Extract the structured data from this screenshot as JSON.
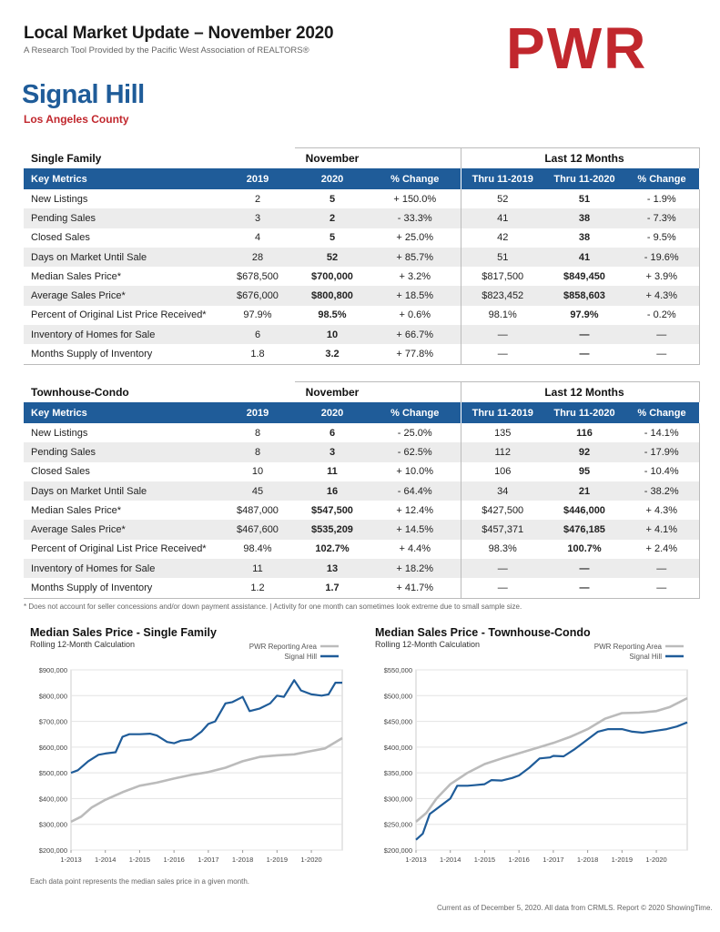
{
  "header": {
    "title": "Local Market Update – November 2020",
    "subtitle": "A Research Tool Provided by the Pacific West Association of REALTORS®",
    "logo": "PWR"
  },
  "location": {
    "city": "Signal Hill",
    "county": "Los Angeles County"
  },
  "columns": {
    "key_metrics": "Key Metrics",
    "november": "November",
    "last12": "Last 12 Months",
    "y2019": "2019",
    "y2020": "2020",
    "pct": "% Change",
    "thru2019": "Thru 11-2019",
    "thru2020": "Thru 11-2020"
  },
  "single_family": {
    "title": "Single Family",
    "rows": [
      [
        "New Listings",
        "2",
        "5",
        "+ 150.0%",
        "52",
        "51",
        "- 1.9%"
      ],
      [
        "Pending Sales",
        "3",
        "2",
        "- 33.3%",
        "41",
        "38",
        "- 7.3%"
      ],
      [
        "Closed Sales",
        "4",
        "5",
        "+ 25.0%",
        "42",
        "38",
        "- 9.5%"
      ],
      [
        "Days on Market Until Sale",
        "28",
        "52",
        "+ 85.7%",
        "51",
        "41",
        "- 19.6%"
      ],
      [
        "Median Sales Price*",
        "$678,500",
        "$700,000",
        "+ 3.2%",
        "$817,500",
        "$849,450",
        "+ 3.9%"
      ],
      [
        "Average Sales Price*",
        "$676,000",
        "$800,800",
        "+ 18.5%",
        "$823,452",
        "$858,603",
        "+ 4.3%"
      ],
      [
        "Percent of Original List Price Received*",
        "97.9%",
        "98.5%",
        "+ 0.6%",
        "98.1%",
        "97.9%",
        "- 0.2%"
      ],
      [
        "Inventory of Homes for Sale",
        "6",
        "10",
        "+ 66.7%",
        "—",
        "—",
        "—"
      ],
      [
        "Months Supply of Inventory",
        "1.8",
        "3.2",
        "+ 77.8%",
        "—",
        "—",
        "—"
      ]
    ]
  },
  "townhouse_condo": {
    "title": "Townhouse-Condo",
    "rows": [
      [
        "New Listings",
        "8",
        "6",
        "- 25.0%",
        "135",
        "116",
        "- 14.1%"
      ],
      [
        "Pending Sales",
        "8",
        "3",
        "- 62.5%",
        "112",
        "92",
        "- 17.9%"
      ],
      [
        "Closed Sales",
        "10",
        "11",
        "+ 10.0%",
        "106",
        "95",
        "- 10.4%"
      ],
      [
        "Days on Market Until Sale",
        "45",
        "16",
        "- 64.4%",
        "34",
        "21",
        "- 38.2%"
      ],
      [
        "Median Sales Price*",
        "$487,000",
        "$547,500",
        "+ 12.4%",
        "$427,500",
        "$446,000",
        "+ 4.3%"
      ],
      [
        "Average Sales Price*",
        "$467,600",
        "$535,209",
        "+ 14.5%",
        "$457,371",
        "$476,185",
        "+ 4.1%"
      ],
      [
        "Percent of Original List Price Received*",
        "98.4%",
        "102.7%",
        "+ 4.4%",
        "98.3%",
        "100.7%",
        "+ 2.4%"
      ],
      [
        "Inventory of Homes for Sale",
        "11",
        "13",
        "+ 18.2%",
        "—",
        "—",
        "—"
      ],
      [
        "Months Supply of Inventory",
        "1.2",
        "1.7",
        "+ 41.7%",
        "—",
        "—",
        "—"
      ]
    ]
  },
  "footnote": "* Does not account for seller concessions and/or down payment assistance. | Activity for one month can sometimes look extreme due to small sample size.",
  "chart_note": "Each data point represents the median sales price in a given month.",
  "footer": "Current as of December 5, 2020. All data from CRMLS. Report © 2020 ShowingTime.",
  "colors": {
    "accent": "#1f5c99",
    "brand": "#c1272d",
    "area_line": "#bbbbbb"
  },
  "chart_data": [
    {
      "type": "line",
      "title": "Median Sales Price - Single Family",
      "subtitle": "Rolling 12-Month Calculation",
      "ylim": [
        200000,
        900000
      ],
      "yticks": [
        "$200,000",
        "$300,000",
        "$400,000",
        "$500,000",
        "$600,000",
        "$700,000",
        "$800,000",
        "$900,000"
      ],
      "yvals": [
        200000,
        300000,
        400000,
        500000,
        600000,
        700000,
        800000,
        900000
      ],
      "xticks": [
        "1-2013",
        "1-2014",
        "1-2015",
        "1-2016",
        "1-2017",
        "1-2018",
        "1-2019",
        "1-2020"
      ],
      "x_start": 2013.0,
      "x_end": 2020.9,
      "series": [
        {
          "name": "PWR Reporting Area",
          "color": "#bbbbbb",
          "x": [
            2013.0,
            2013.3,
            2013.6,
            2014.0,
            2014.5,
            2015.0,
            2015.5,
            2016.0,
            2016.5,
            2017.0,
            2017.5,
            2018.0,
            2018.5,
            2019.0,
            2019.5,
            2020.0,
            2020.4,
            2020.9
          ],
          "y": [
            310000,
            330000,
            365000,
            395000,
            425000,
            450000,
            462000,
            478000,
            492000,
            503000,
            520000,
            545000,
            562000,
            568000,
            572000,
            585000,
            595000,
            635000
          ]
        },
        {
          "name": "Signal Hill",
          "color": "#1f5c99",
          "x": [
            2013.0,
            2013.2,
            2013.5,
            2013.8,
            2014.0,
            2014.3,
            2014.5,
            2014.7,
            2015.0,
            2015.3,
            2015.5,
            2015.8,
            2016.0,
            2016.2,
            2016.5,
            2016.8,
            2017.0,
            2017.2,
            2017.5,
            2017.7,
            2018.0,
            2018.2,
            2018.5,
            2018.8,
            2019.0,
            2019.2,
            2019.5,
            2019.7,
            2020.0,
            2020.3,
            2020.5,
            2020.7,
            2020.9
          ],
          "y": [
            500000,
            510000,
            545000,
            570000,
            575000,
            580000,
            640000,
            650000,
            650000,
            652000,
            645000,
            620000,
            615000,
            625000,
            630000,
            660000,
            690000,
            700000,
            770000,
            775000,
            795000,
            740000,
            750000,
            770000,
            800000,
            795000,
            860000,
            820000,
            805000,
            800000,
            805000,
            850000,
            850000
          ]
        }
      ],
      "legend": "top-right"
    },
    {
      "type": "line",
      "title": "Median Sales Price - Townhouse-Condo",
      "subtitle": "Rolling 12-Month Calculation",
      "ylim": [
        200000,
        550000
      ],
      "yticks": [
        "$200,000",
        "$250,000",
        "$300,000",
        "$350,000",
        "$400,000",
        "$450,000",
        "$500,000",
        "$550,000"
      ],
      "yvals": [
        200000,
        250000,
        300000,
        350000,
        400000,
        450000,
        500000,
        550000
      ],
      "xticks": [
        "1-2013",
        "1-2014",
        "1-2015",
        "1-2016",
        "1-2017",
        "1-2018",
        "1-2019",
        "1-2020"
      ],
      "x_start": 2013.0,
      "x_end": 2020.9,
      "series": [
        {
          "name": "PWR Reporting Area",
          "color": "#bbbbbb",
          "x": [
            2013.0,
            2013.3,
            2013.6,
            2014.0,
            2014.5,
            2015.0,
            2015.5,
            2016.0,
            2016.5,
            2017.0,
            2017.5,
            2018.0,
            2018.5,
            2019.0,
            2019.5,
            2020.0,
            2020.4,
            2020.9
          ],
          "y": [
            255000,
            272000,
            300000,
            328000,
            350000,
            367000,
            378000,
            388000,
            398000,
            408000,
            420000,
            435000,
            455000,
            466000,
            467000,
            470000,
            478000,
            495000
          ]
        },
        {
          "name": "Signal Hill",
          "color": "#1f5c99",
          "x": [
            2013.0,
            2013.2,
            2013.4,
            2013.7,
            2014.0,
            2014.2,
            2014.5,
            2014.7,
            2015.0,
            2015.2,
            2015.5,
            2015.8,
            2016.0,
            2016.3,
            2016.6,
            2016.9,
            2017.0,
            2017.3,
            2017.6,
            2018.0,
            2018.3,
            2018.6,
            2019.0,
            2019.3,
            2019.6,
            2020.0,
            2020.3,
            2020.6,
            2020.9
          ],
          "y": [
            220000,
            232000,
            270000,
            285000,
            300000,
            325000,
            325000,
            326000,
            328000,
            336000,
            335000,
            340000,
            345000,
            360000,
            378000,
            380000,
            383000,
            382000,
            395000,
            415000,
            430000,
            435000,
            435000,
            430000,
            428000,
            432000,
            435000,
            440000,
            448000
          ]
        }
      ],
      "legend": "top-right"
    }
  ]
}
